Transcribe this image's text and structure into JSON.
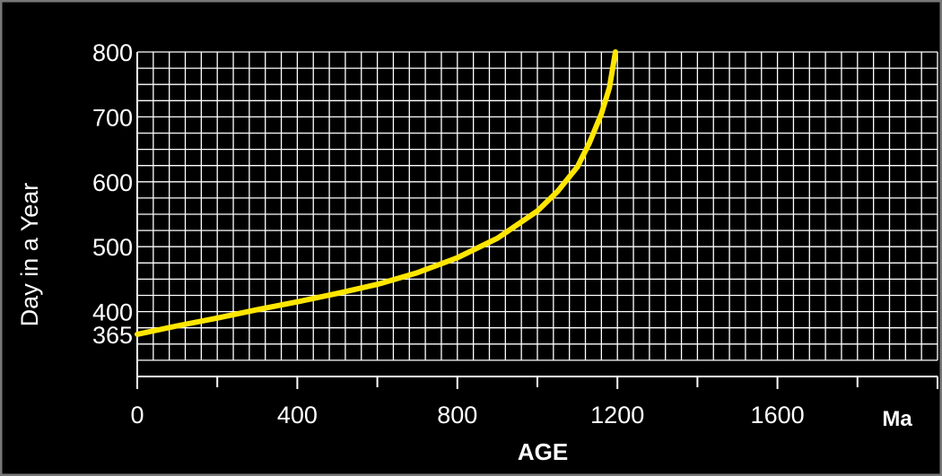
{
  "chart_data": {
    "type": "line",
    "title": "",
    "xlabel": "AGE",
    "ylabel": "Day in a Year",
    "x_unit": "Ma",
    "xlim": [
      0,
      2000
    ],
    "ylim": [
      300,
      800
    ],
    "x_ticks": [
      "0",
      "400",
      "800",
      "1200",
      "1600"
    ],
    "y_ticks": [
      "800",
      "700",
      "600",
      "500",
      "400",
      "365"
    ],
    "grid": true,
    "series_color": "#FFE600",
    "series": [
      {
        "x": [
          0,
          100,
          200,
          300,
          400,
          500,
          600,
          700,
          800,
          900,
          1000,
          1050,
          1100,
          1130,
          1160,
          1180,
          1195
        ],
        "y": [
          365,
          378,
          390,
          403,
          415,
          428,
          442,
          460,
          483,
          513,
          555,
          585,
          623,
          660,
          705,
          745,
          800
        ]
      }
    ]
  }
}
